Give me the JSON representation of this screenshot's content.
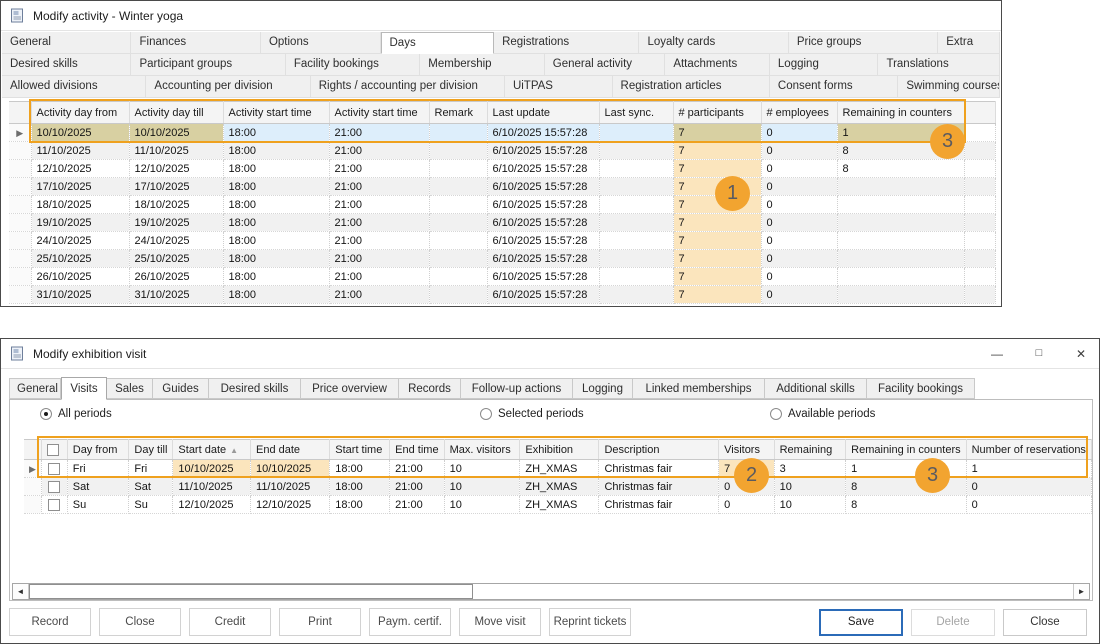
{
  "icons": {
    "window": "document-icon",
    "minimize": "—",
    "maximize": "□",
    "close": "✕",
    "sort_ascending": "▲",
    "row_selector": "▶",
    "scroll_left": "◄",
    "scroll_right": "►"
  },
  "colors": {
    "annotation_orange": "#EFA11E",
    "callout_fill": "#F2A430",
    "highlight_header": "#F4CF8B",
    "highlight_cell": "#FBE5BD",
    "selected_row_tan": "#D8D0A2",
    "selected_row_blue": "#DDEEFB",
    "save_button_border": "#2B6BB8"
  },
  "callouts": {
    "one": "1",
    "two": "2",
    "three_top": "3",
    "three_bottom": "3"
  },
  "activity_window": {
    "title": "Modify activity - Winter yoga",
    "active_tab": "Days",
    "tab_rows": [
      [
        "General",
        "Finances",
        "Options",
        "Days",
        "Registrations",
        "Loyalty cards",
        "Price groups",
        "Extra"
      ],
      [
        "Desired skills",
        "Participant groups",
        "Facility bookings",
        "Membership",
        "General activity",
        "Attachments",
        "Logging",
        "Translations"
      ],
      [
        "Allowed divisions",
        "Accounting per division",
        "Rights / accounting per division",
        "UiTPAS",
        "Registration articles",
        "Consent forms",
        "Swimming courses"
      ]
    ],
    "grid": {
      "columns": [
        "Activity day from",
        "Activity day till",
        "Activity start time",
        "Activity start time",
        "Remark",
        "Last update",
        "Last sync.",
        "# participants",
        "# employees",
        "Remaining in counters"
      ],
      "rows": [
        [
          "10/10/2025",
          "10/10/2025",
          "18:00",
          "21:00",
          "",
          "6/10/2025 15:57:28",
          "",
          "7",
          "0",
          "1"
        ],
        [
          "11/10/2025",
          "11/10/2025",
          "18:00",
          "21:00",
          "",
          "6/10/2025 15:57:28",
          "",
          "7",
          "0",
          "8"
        ],
        [
          "12/10/2025",
          "12/10/2025",
          "18:00",
          "21:00",
          "",
          "6/10/2025 15:57:28",
          "",
          "7",
          "0",
          "8"
        ],
        [
          "17/10/2025",
          "17/10/2025",
          "18:00",
          "21:00",
          "",
          "6/10/2025 15:57:28",
          "",
          "7",
          "0",
          ""
        ],
        [
          "18/10/2025",
          "18/10/2025",
          "18:00",
          "21:00",
          "",
          "6/10/2025 15:57:28",
          "",
          "7",
          "0",
          ""
        ],
        [
          "19/10/2025",
          "19/10/2025",
          "18:00",
          "21:00",
          "",
          "6/10/2025 15:57:28",
          "",
          "7",
          "0",
          ""
        ],
        [
          "24/10/2025",
          "24/10/2025",
          "18:00",
          "21:00",
          "",
          "6/10/2025 15:57:28",
          "",
          "7",
          "0",
          ""
        ],
        [
          "25/10/2025",
          "25/10/2025",
          "18:00",
          "21:00",
          "",
          "6/10/2025 15:57:28",
          "",
          "7",
          "0",
          ""
        ],
        [
          "26/10/2025",
          "26/10/2025",
          "18:00",
          "21:00",
          "",
          "6/10/2025 15:57:28",
          "",
          "7",
          "0",
          ""
        ],
        [
          "31/10/2025",
          "31/10/2025",
          "18:00",
          "21:00",
          "",
          "6/10/2025 15:57:28",
          "",
          "7",
          "0",
          ""
        ]
      ]
    }
  },
  "exhibition_window": {
    "title": "Modify exhibition visit",
    "active_tab": "Visits",
    "tabs": [
      "General",
      "Visits",
      "Sales",
      "Guides",
      "Desired skills",
      "Price overview",
      "Records",
      "Follow-up actions",
      "Logging",
      "Linked memberships",
      "Additional skills",
      "Facility bookings"
    ],
    "radio_options": [
      {
        "label": "All periods",
        "selected": true
      },
      {
        "label": "Selected periods",
        "selected": false
      },
      {
        "label": "Available periods",
        "selected": false
      }
    ],
    "grid": {
      "columns": [
        "Day from",
        "Day till",
        "Start date",
        "End date",
        "Start time",
        "End time",
        "Max. visitors",
        "Exhibition",
        "Description",
        "Visitors",
        "Remaining",
        "Remaining in counters",
        "Number of reservations"
      ],
      "sort_column": "Start date",
      "rows": [
        [
          "Fri",
          "Fri",
          "10/10/2025",
          "10/10/2025",
          "18:00",
          "21:00",
          "10",
          "ZH_XMAS",
          "Christmas fair",
          "7",
          "3",
          "1",
          "1"
        ],
        [
          "Sat",
          "Sat",
          "11/10/2025",
          "11/10/2025",
          "18:00",
          "21:00",
          "10",
          "ZH_XMAS",
          "Christmas fair",
          "0",
          "10",
          "8",
          "0"
        ],
        [
          "Su",
          "Su",
          "12/10/2025",
          "12/10/2025",
          "18:00",
          "21:00",
          "10",
          "ZH_XMAS",
          "Christmas fair",
          "0",
          "10",
          "8",
          "0"
        ]
      ]
    },
    "footer_left_buttons": [
      "Record",
      "Close",
      "Credit",
      "Print",
      "Paym. certif.",
      "Move visit",
      "Reprint tickets"
    ],
    "footer_right_buttons": [
      {
        "label": "Save",
        "style": "primary"
      },
      {
        "label": "Delete",
        "style": "disabled"
      },
      {
        "label": "Close",
        "style": "normal"
      }
    ]
  }
}
